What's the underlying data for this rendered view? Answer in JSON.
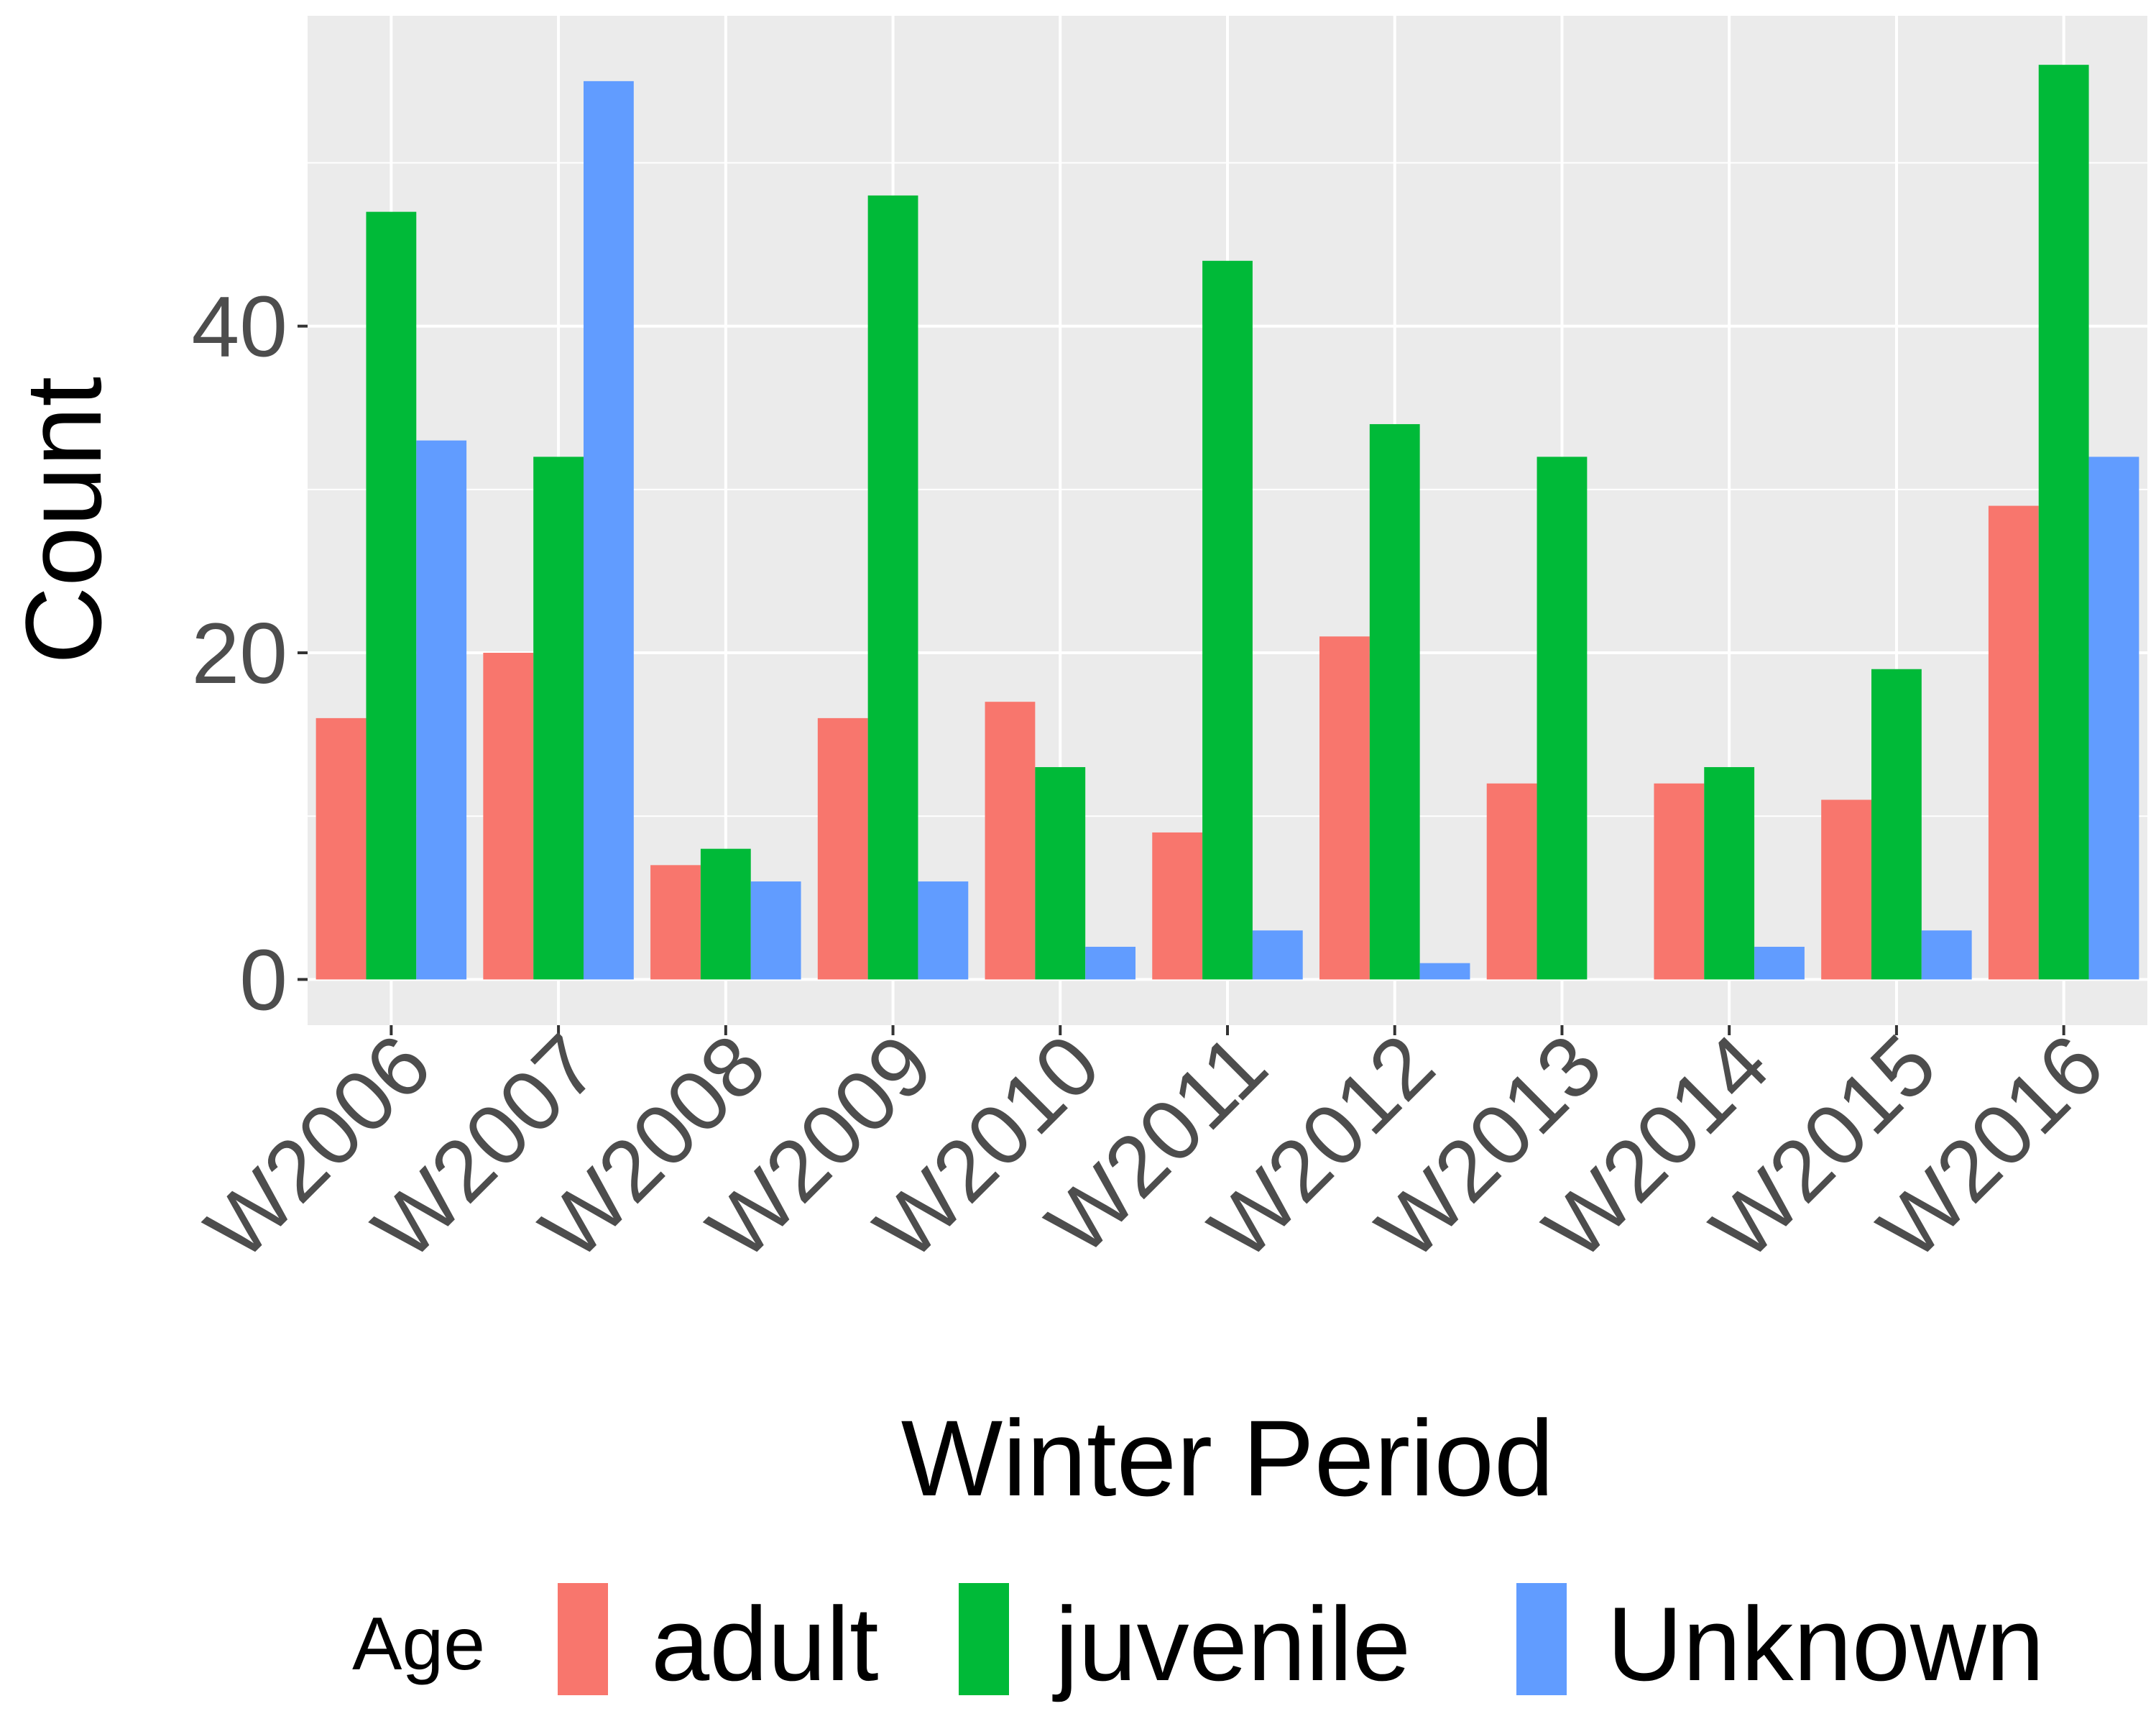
{
  "chart_data": {
    "type": "bar",
    "title": "",
    "xlabel": "Winter Period",
    "ylabel": "Count",
    "categories": [
      "W2006",
      "W2007",
      "W2008",
      "W2009",
      "W2010",
      "W2011",
      "W2012",
      "W2013",
      "W2014",
      "W2015",
      "W2016"
    ],
    "series": [
      {
        "name": "adult",
        "color": "#F8766D",
        "values": [
          16,
          20,
          7,
          16,
          17,
          9,
          21,
          12,
          12,
          11,
          29
        ]
      },
      {
        "name": "juvenile",
        "color": "#00BA38",
        "values": [
          47,
          32,
          8,
          48,
          13,
          44,
          34,
          32,
          13,
          19,
          56
        ]
      },
      {
        "name": "Unknown",
        "color": "#619CFF",
        "values": [
          33,
          55,
          6,
          6,
          2,
          3,
          1,
          0,
          2,
          3,
          32
        ]
      }
    ],
    "ylim": [
      -2.8,
      59
    ],
    "yticks": [
      0,
      20,
      40
    ],
    "grid": true,
    "legend": {
      "title": "Age",
      "position": "bottom"
    },
    "colors": {
      "panel_background": "#EBEBEB",
      "gridline": "#FFFFFF",
      "tick_text": "#4D4D4D",
      "axis_title": "#000000"
    }
  }
}
